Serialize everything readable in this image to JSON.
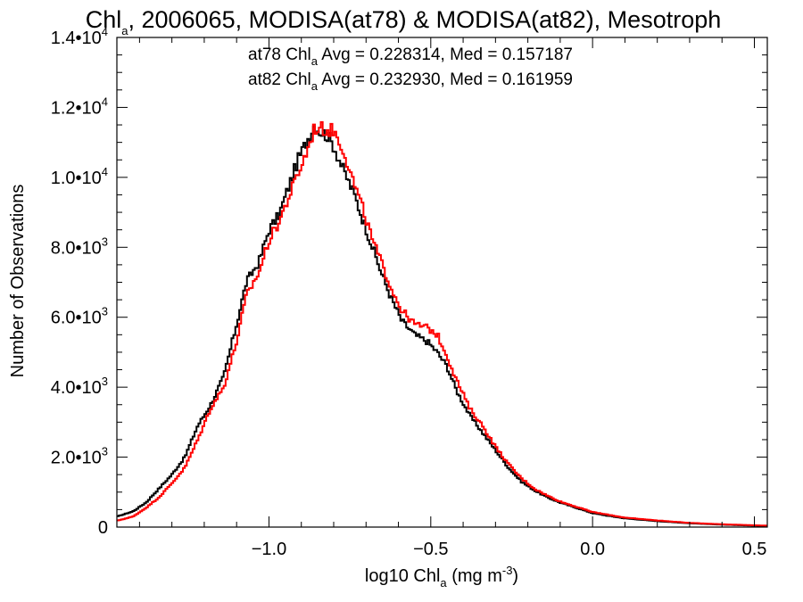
{
  "chart_data": {
    "type": "line",
    "title": {
      "prefix": "Chl",
      "sub": "a",
      "rest": ", 2006065, MODISA(at78) & MODISA(at82), Mesotroph"
    },
    "xlabel": {
      "prefix": "log10 Chl",
      "sub": "a",
      "mid": " (mg m",
      "sup": "-3",
      "suffix": ")"
    },
    "ylabel": "Number of Observations",
    "xlim": [
      -1.47,
      0.54
    ],
    "ylim": [
      0,
      14000
    ],
    "x_ticks": [
      {
        "value": -1.0,
        "label": "−1.0"
      },
      {
        "value": -0.5,
        "label": "−0.5"
      },
      {
        "value": 0.0,
        "label": "0.0"
      },
      {
        "value": 0.5,
        "label": "0.5"
      }
    ],
    "y_ticks": [
      {
        "value": 0,
        "mant": "0",
        "exp": ""
      },
      {
        "value": 2000,
        "mant": "2.0•10",
        "exp": "3"
      },
      {
        "value": 4000,
        "mant": "4.0•10",
        "exp": "3"
      },
      {
        "value": 6000,
        "mant": "6.0•10",
        "exp": "3"
      },
      {
        "value": 8000,
        "mant": "8.0•10",
        "exp": "3"
      },
      {
        "value": 10000,
        "mant": "1.0•10",
        "exp": "4"
      },
      {
        "value": 12000,
        "mant": "1.2•10",
        "exp": "4"
      },
      {
        "value": 14000,
        "mant": "1.4•10",
        "exp": "4"
      }
    ],
    "legend": [
      {
        "color": "#000000",
        "prefix": "at78 Chl",
        "sub": "a",
        "suffix": " Avg = 0.228314, Med = 0.157187"
      },
      {
        "color": "#ff0000",
        "prefix": "at82 Chl",
        "sub": "a",
        "suffix": " Avg = 0.232930, Med = 0.161959"
      }
    ],
    "series": [
      {
        "color": "#000000",
        "points": [
          [
            -1.47,
            300
          ],
          [
            -1.42,
            450
          ],
          [
            -1.38,
            700
          ],
          [
            -1.34,
            1100
          ],
          [
            -1.3,
            1500
          ],
          [
            -1.26,
            2000
          ],
          [
            -1.22,
            2900
          ],
          [
            -1.18,
            3500
          ],
          [
            -1.14,
            4300
          ],
          [
            -1.1,
            5800
          ],
          [
            -1.07,
            7000
          ],
          [
            -1.03,
            7600
          ],
          [
            -1.0,
            8500
          ],
          [
            -0.97,
            8900
          ],
          [
            -0.94,
            9700
          ],
          [
            -0.91,
            10500
          ],
          [
            -0.88,
            11100
          ],
          [
            -0.86,
            11500
          ],
          [
            -0.84,
            11300
          ],
          [
            -0.82,
            11200
          ],
          [
            -0.8,
            10900
          ],
          [
            -0.77,
            10200
          ],
          [
            -0.74,
            9600
          ],
          [
            -0.71,
            8800
          ],
          [
            -0.68,
            8000
          ],
          [
            -0.65,
            7200
          ],
          [
            -0.62,
            6500
          ],
          [
            -0.59,
            5900
          ],
          [
            -0.55,
            5500
          ],
          [
            -0.51,
            5300
          ],
          [
            -0.48,
            5000
          ],
          [
            -0.45,
            4600
          ],
          [
            -0.42,
            3900
          ],
          [
            -0.38,
            3200
          ],
          [
            -0.34,
            2700
          ],
          [
            -0.3,
            2200
          ],
          [
            -0.26,
            1700
          ],
          [
            -0.22,
            1300
          ],
          [
            -0.18,
            1050
          ],
          [
            -0.14,
            850
          ],
          [
            -0.1,
            700
          ],
          [
            -0.05,
            550
          ],
          [
            0.0,
            400
          ],
          [
            0.05,
            320
          ],
          [
            0.1,
            250
          ],
          [
            0.2,
            170
          ],
          [
            0.3,
            110
          ],
          [
            0.4,
            70
          ],
          [
            0.54,
            30
          ]
        ]
      },
      {
        "color": "#ff0000",
        "points": [
          [
            -1.47,
            180
          ],
          [
            -1.42,
            300
          ],
          [
            -1.38,
            550
          ],
          [
            -1.34,
            850
          ],
          [
            -1.3,
            1250
          ],
          [
            -1.26,
            1700
          ],
          [
            -1.22,
            2500
          ],
          [
            -1.18,
            3400
          ],
          [
            -1.14,
            4000
          ],
          [
            -1.1,
            5300
          ],
          [
            -1.07,
            6600
          ],
          [
            -1.03,
            7300
          ],
          [
            -1.0,
            8200
          ],
          [
            -0.97,
            8700
          ],
          [
            -0.94,
            9400
          ],
          [
            -0.91,
            10100
          ],
          [
            -0.88,
            10800
          ],
          [
            -0.86,
            11400
          ],
          [
            -0.84,
            11400
          ],
          [
            -0.82,
            11350
          ],
          [
            -0.8,
            11350
          ],
          [
            -0.77,
            10800
          ],
          [
            -0.74,
            9900
          ],
          [
            -0.71,
            9100
          ],
          [
            -0.68,
            8200
          ],
          [
            -0.65,
            7500
          ],
          [
            -0.62,
            6800
          ],
          [
            -0.59,
            6200
          ],
          [
            -0.55,
            5800
          ],
          [
            -0.51,
            5700
          ],
          [
            -0.48,
            5500
          ],
          [
            -0.45,
            4900
          ],
          [
            -0.42,
            4200
          ],
          [
            -0.38,
            3400
          ],
          [
            -0.34,
            2900
          ],
          [
            -0.3,
            2300
          ],
          [
            -0.26,
            1800
          ],
          [
            -0.22,
            1400
          ],
          [
            -0.18,
            1100
          ],
          [
            -0.14,
            900
          ],
          [
            -0.1,
            730
          ],
          [
            -0.05,
            580
          ],
          [
            0.0,
            430
          ],
          [
            0.05,
            350
          ],
          [
            0.1,
            270
          ],
          [
            0.2,
            190
          ],
          [
            0.3,
            120
          ],
          [
            0.4,
            80
          ],
          [
            0.54,
            40
          ]
        ]
      }
    ]
  }
}
